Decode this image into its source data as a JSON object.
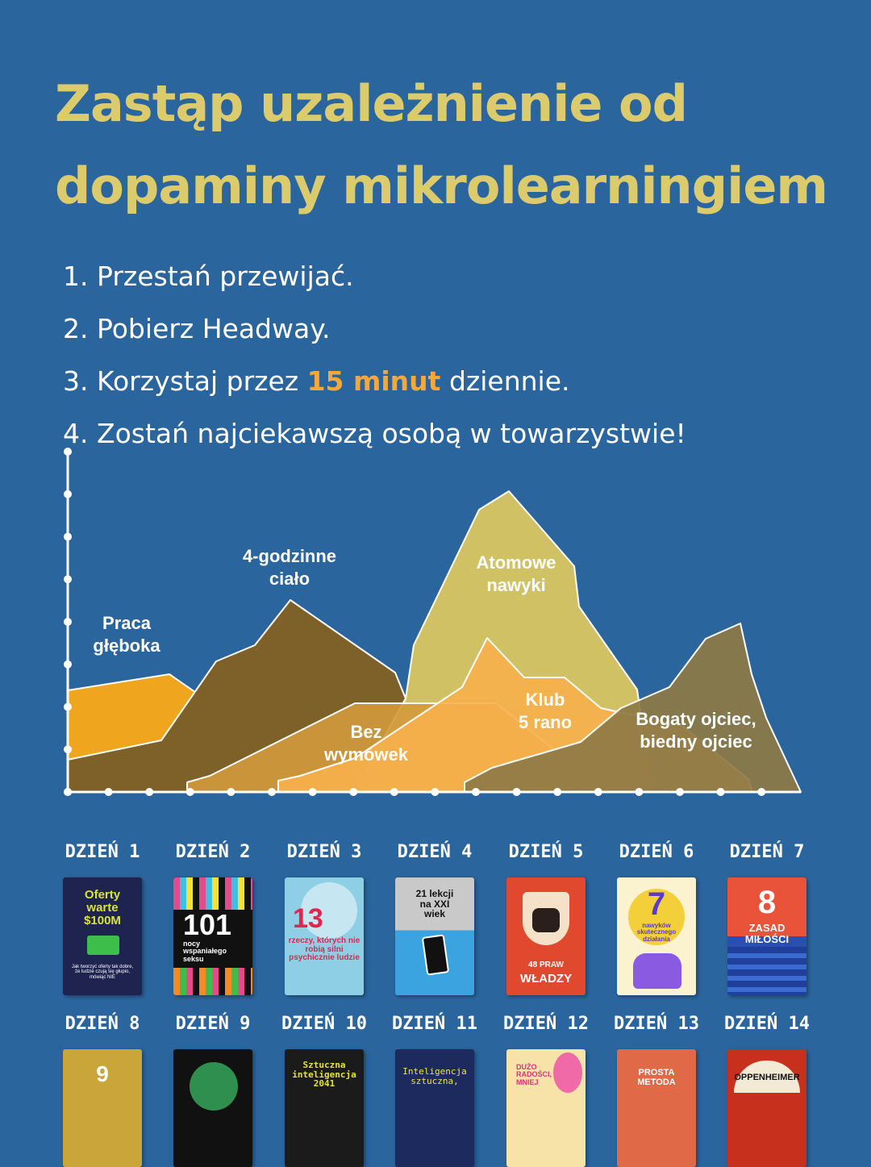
{
  "title": {
    "line1": "Zastąp uzależnienie od",
    "line2": "dopaminy mikrolearningiem"
  },
  "steps": [
    {
      "num": "1.",
      "text": "Przestań przewijać."
    },
    {
      "num": "2.",
      "text": "Pobierz Headway."
    },
    {
      "num": "3.",
      "before": "Korzystaj przez",
      "highlight": "15 minut",
      "after": "dziennie."
    },
    {
      "num": "4.",
      "text": "Zostań najciekawszą osobą w towarzystwie!"
    }
  ],
  "colors": {
    "background": "#2b659e",
    "title": "#dccb6c",
    "highlight": "#f5a73a",
    "text": "#ffffff"
  },
  "mountains": [
    {
      "name": "Praca głęboka",
      "color": "#f0a51e"
    },
    {
      "name": "4-godzinne ciało",
      "color": "#7e6128"
    },
    {
      "name": "Atomowe nawyki",
      "color": "#d9c662"
    },
    {
      "name": "Bez wymówek",
      "color": "#d29a3c"
    },
    {
      "name": "Klub 5 rano",
      "color": "#f7b04c"
    },
    {
      "name": "Bogaty ojciec, biedny ojciec",
      "color": "#8d7a45"
    }
  ],
  "labels": {
    "praca_1": "Praca",
    "praca_2": "głęboka",
    "cialo_1": "4-godzinne",
    "cialo_2": "ciało",
    "atomowe_1": "Atomowe",
    "atomowe_2": "nawyki",
    "bez_1": "Bez",
    "bez_2": "wymówek",
    "klub_1": "Klub",
    "klub_2": "5 rano",
    "bogaty_1": "Bogaty ojciec,",
    "bogaty_2": "biedny ojciec"
  },
  "days": [
    {
      "label": "DZIEŃ 1",
      "book": [
        "Oferty",
        "warte",
        "$100M"
      ],
      "color": "#1f2350",
      "text_color": "#d8e23c",
      "sub": "Jak tworzyć oferty tak dobre, że ludzie czują się głupio, mówiąc NIE"
    },
    {
      "label": "DZIEŃ 2",
      "book": [
        "101"
      ],
      "color": "#111111",
      "text_color": "#ffffff",
      "sub": "nocy wspaniałego seksu"
    },
    {
      "label": "DZIEŃ 3",
      "book": [
        "13"
      ],
      "color": "#8ecfe6",
      "text_color": "#e0254f",
      "sub": "rzeczy, których nie robią silni psychicznie ludzie"
    },
    {
      "label": "DZIEŃ 4",
      "book": [
        "21 lekcji",
        "na XXI",
        "wiek"
      ],
      "color": "#3aa3e0",
      "text_color": "#111111",
      "sub": ""
    },
    {
      "label": "DZIEŃ 5",
      "book": [
        "48 PRAW"
      ],
      "color": "#e1492f",
      "text_color": "#ffffff",
      "sub": "WŁADZY"
    },
    {
      "label": "DZIEŃ 6",
      "book": [
        "7"
      ],
      "color": "#fbf2cf",
      "text_color": "#5b3cc4",
      "sub": "nawyków skutecznego działania"
    },
    {
      "label": "DZIEŃ 7",
      "book": [
        "8"
      ],
      "color": "#e8533a",
      "text_color": "#ffffff",
      "sub": "ZASAD MIŁOŚCI"
    },
    {
      "label": "DZIEŃ 8",
      "book": [
        "9"
      ],
      "color": "#c9a53a",
      "text_color": "#ffffff",
      "sub": ""
    },
    {
      "label": "DZIEŃ 9",
      "book": [
        ""
      ],
      "color": "#111111",
      "text_color": "#ffffff",
      "sub": ""
    },
    {
      "label": "DZIEŃ 10",
      "book": [
        "Sztuczna",
        "inteligencja",
        "2041"
      ],
      "color": "#1b1b1b",
      "text_color": "#e6e23c",
      "sub": ""
    },
    {
      "label": "DZIEŃ 11",
      "book": [
        "Inteligencja",
        "sztuczna,"
      ],
      "color": "#1c2a5e",
      "text_color": "#f2e24a",
      "sub": ""
    },
    {
      "label": "DZIEŃ 12",
      "book": [
        "DUŻO",
        "RADOŚCI,",
        "MNIEJ"
      ],
      "color": "#f7e3a8",
      "text_color": "#e0307a",
      "sub": ""
    },
    {
      "label": "DZIEŃ 13",
      "book": [
        "PROSTA",
        "METODA"
      ],
      "color": "#e06a48",
      "text_color": "#ffffff",
      "sub": ""
    },
    {
      "label": "DZIEŃ 14",
      "book": [
        "OPPENHEIMER"
      ],
      "color": "#c8301e",
      "text_color": "#111111",
      "sub": ""
    }
  ]
}
